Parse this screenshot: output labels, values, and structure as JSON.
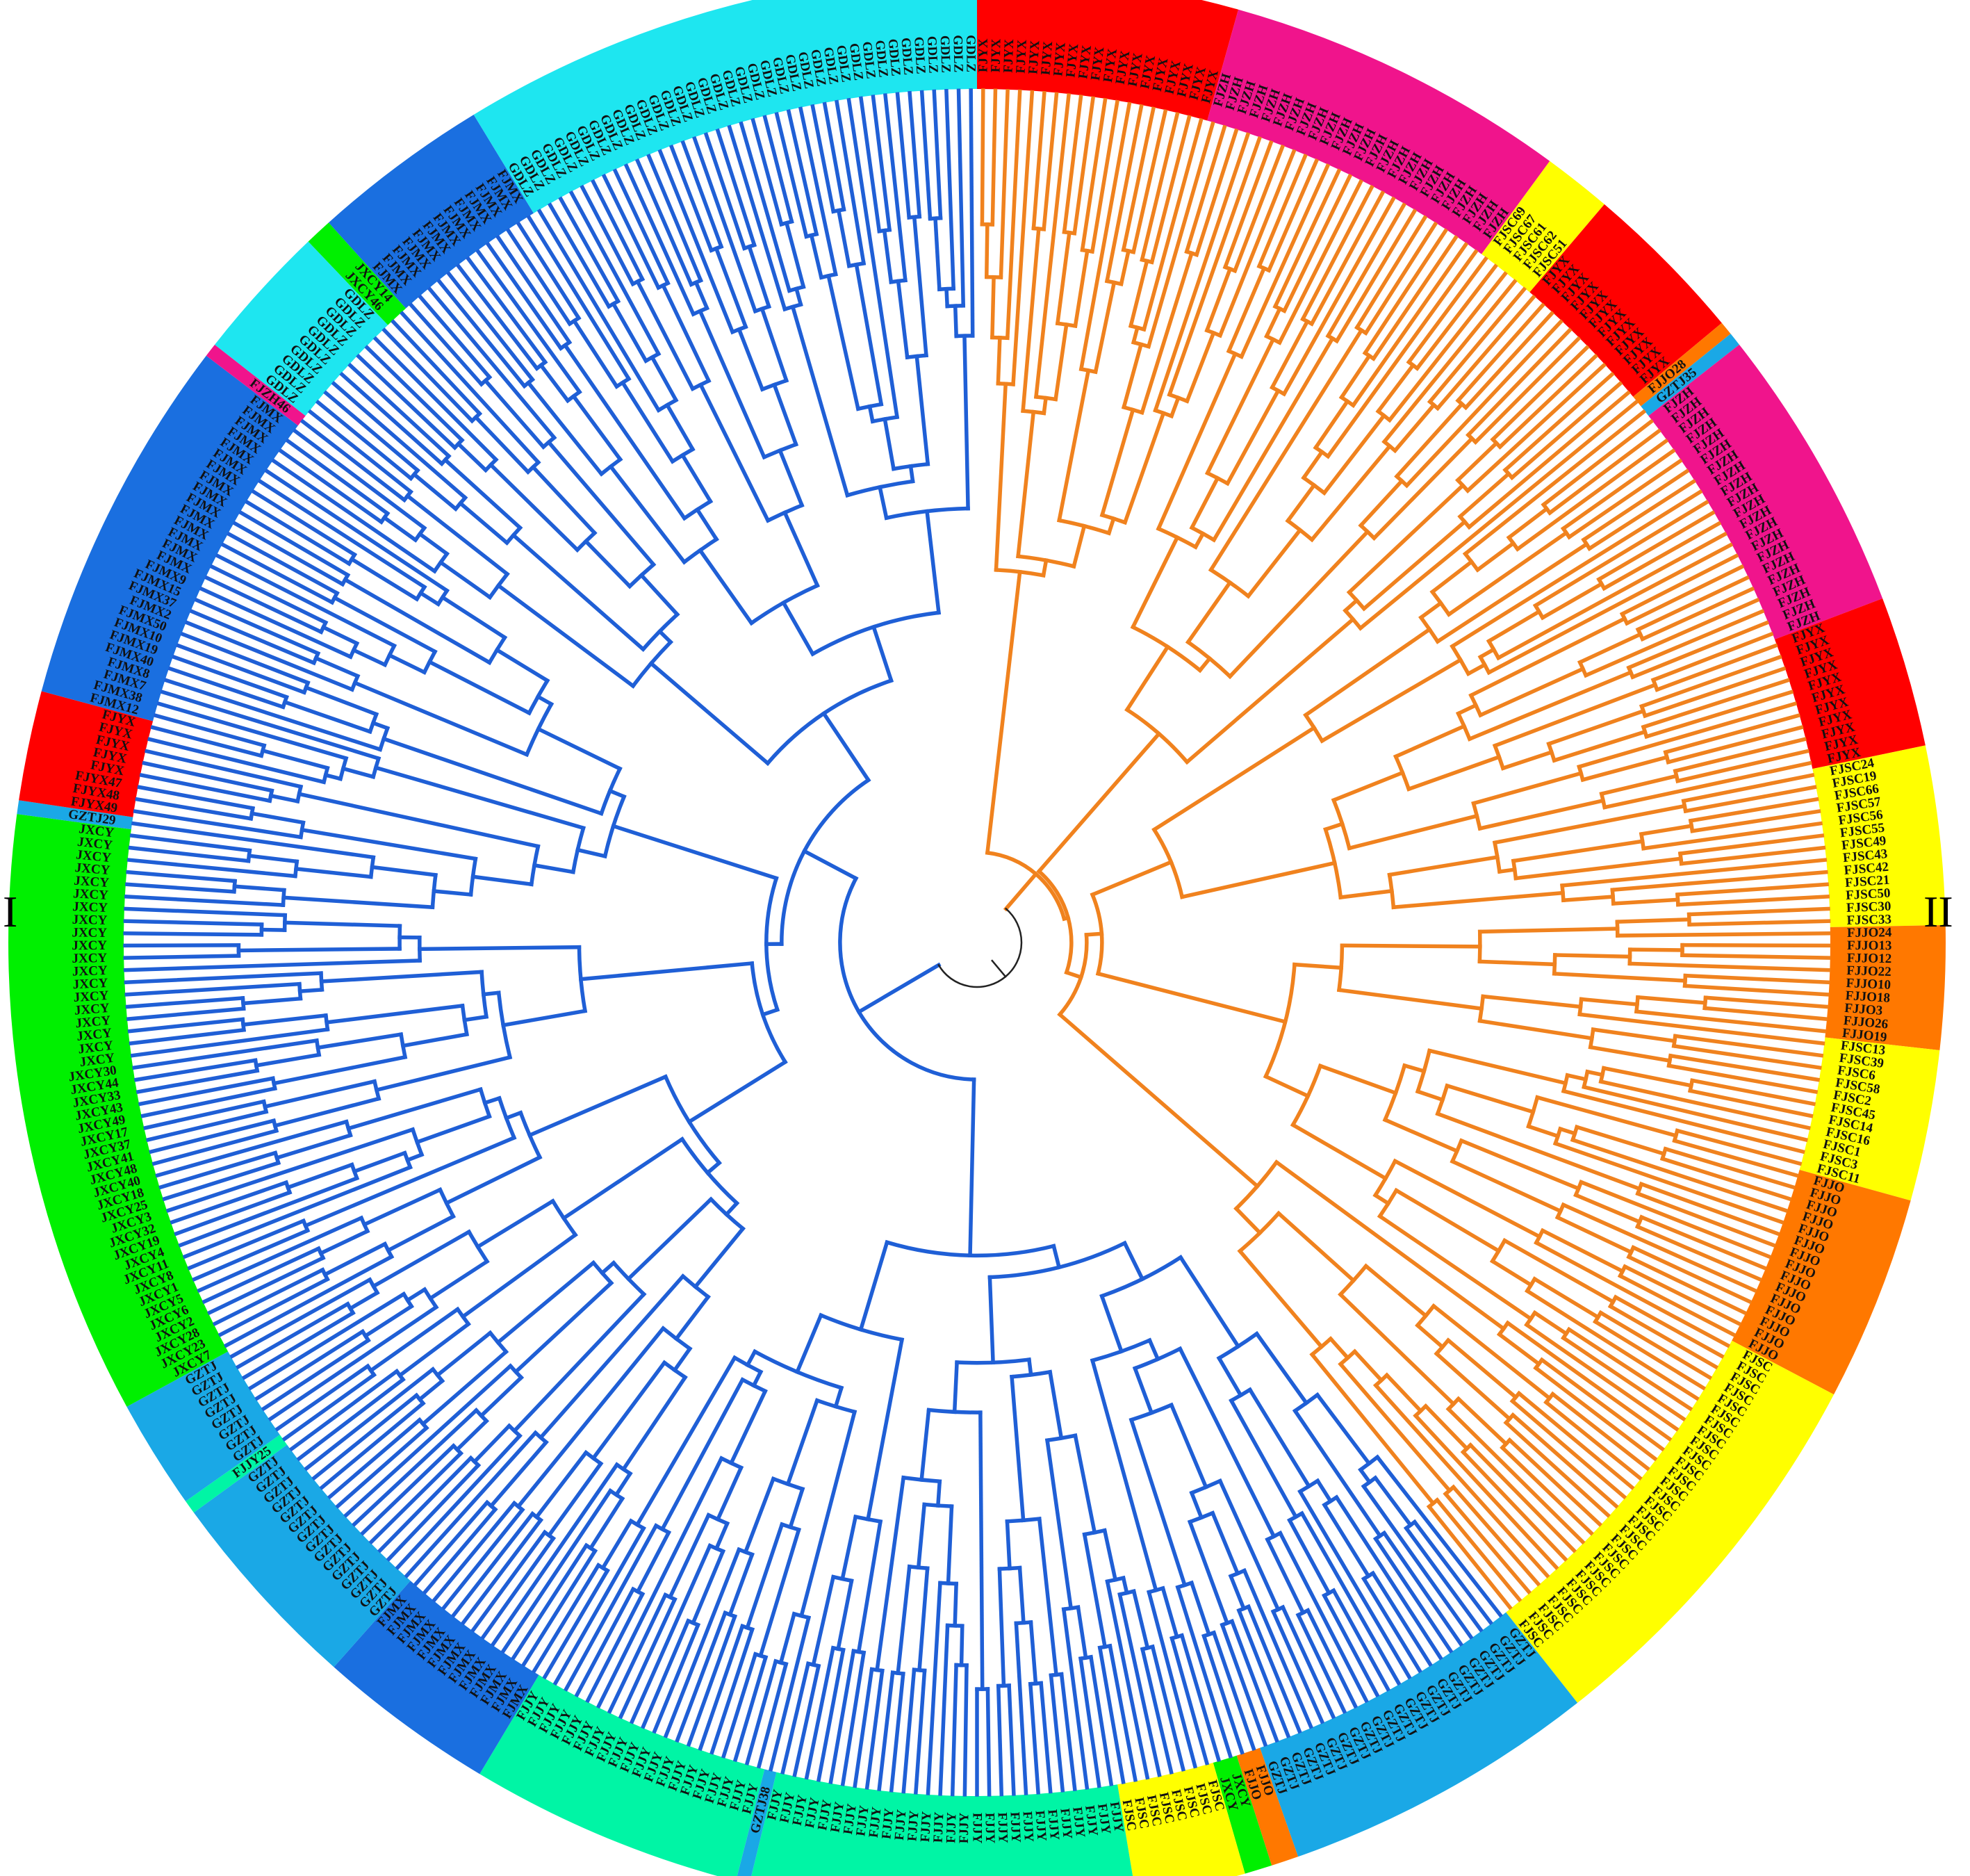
{
  "group_labels": {
    "left": "I",
    "right": "II"
  },
  "colors": {
    "clade_I": "#1f5fd6",
    "clade_II": "#f0821e",
    "root": "#222222"
  },
  "clade_II_segment_range": [
    0,
    12
  ],
  "segments": [
    {
      "prefix": "FJYX",
      "color": "#ff0000",
      "count": 19,
      "labels": []
    },
    {
      "prefix": "FJZH",
      "color": "#f0148c",
      "count": 25,
      "labels": []
    },
    {
      "prefix": "FJSC",
      "color": "#ffff00",
      "count": 5,
      "labels": [
        "FJSC69",
        "FJSC67",
        "FJSC61",
        "FJSC62",
        "FJSC51"
      ]
    },
    {
      "prefix": "FJYX",
      "color": "#ff0000",
      "count": 12,
      "labels": []
    },
    {
      "prefix": "FJJO",
      "color": "#ff7800",
      "count": 1,
      "labels": [
        "FJJO28"
      ]
    },
    {
      "prefix": "GZTJ",
      "color": "#1aa8e6",
      "count": 1,
      "labels": [
        "GZTJ35"
      ]
    },
    {
      "prefix": "FJZH",
      "color": "#f0148c",
      "count": 21,
      "labels": []
    },
    {
      "prefix": "FJYX",
      "color": "#ff0000",
      "count": 11,
      "labels": []
    },
    {
      "prefix": "FJSC",
      "color": "#ffff00",
      "count": 13,
      "labels": [
        "FJSC24",
        "FJSC19",
        "FJSC66",
        "FJSC57",
        "FJSC56",
        "FJSC55",
        "FJSC49",
        "FJSC43",
        "FJSC42",
        "FJSC21",
        "FJSC50",
        "FJSC30",
        "FJSC33"
      ]
    },
    {
      "prefix": "FJJO",
      "color": "#ff7800",
      "count": 9,
      "labels": [
        "FJJO24",
        "FJJO13",
        "FJJO12",
        "FJJO22",
        "FJJO10",
        "FJJO18",
        "FJJO3",
        "FJJO26",
        "FJJO19"
      ]
    },
    {
      "prefix": "FJSC",
      "color": "#ffff00",
      "count": 11,
      "labels": [
        "FJSC13",
        "FJSC39",
        "FJSC6",
        "FJSC58",
        "FJSC2",
        "FJSC45",
        "FJSC14",
        "FJSC16",
        "FJSC1",
        "FJSC3",
        "FJSC11"
      ]
    },
    {
      "prefix": "FJJO",
      "color": "#ff7800",
      "count": 15,
      "labels": []
    },
    {
      "prefix": "FJSC",
      "color": "#ffff00",
      "count": 29,
      "labels": []
    },
    {
      "prefix": "GZTJ",
      "color": "#1aa8e6",
      "count": 23,
      "labels": []
    },
    {
      "prefix": "FJJO",
      "color": "#ff7800",
      "count": 2,
      "labels": []
    },
    {
      "prefix": "JXCY",
      "color": "#00f000",
      "count": 2,
      "labels": []
    },
    {
      "prefix": "FJSC",
      "color": "#ffff00",
      "count": 8,
      "labels": []
    },
    {
      "prefix": "FJJY",
      "color": "#00f5a5",
      "count": 28,
      "labels": []
    },
    {
      "prefix": "GZTJ",
      "color": "#1aa8e6",
      "count": 1,
      "labels": [
        "GZTJ38"
      ]
    },
    {
      "prefix": "FJJY",
      "color": "#00f5a5",
      "count": 20,
      "labels": []
    },
    {
      "prefix": "FJMX",
      "color": "#1a6fe0",
      "count": 13,
      "labels": []
    },
    {
      "prefix": "GZTJ",
      "color": "#1aa8e6",
      "count": 15,
      "labels": []
    },
    {
      "prefix": "FJJY",
      "color": "#00f5a5",
      "count": 1,
      "labels": [
        "FJJY25"
      ]
    },
    {
      "prefix": "GZTJ",
      "color": "#1aa8e6",
      "count": 8,
      "labels": []
    },
    {
      "prefix": "JXCY",
      "color": "#00f000",
      "count": 44,
      "labels": [
        "JXCY7",
        "JXCY23",
        "JXCY28",
        "JXCY2",
        "JXCY6",
        "JXCY5",
        "JXCY1",
        "JXCY8",
        "JXCY11",
        "JXCY4",
        "JXCY19",
        "JXCY32",
        "JXCY3",
        "JXCY25",
        "JXCY18",
        "JXCY40",
        "JXCY48",
        "JXCY41",
        "JXCY37",
        "JXCY17",
        "JXCY49",
        "JXCY43",
        "JXCY33",
        "JXCY44",
        "JXCY30"
      ]
    },
    {
      "prefix": "GZTJ",
      "color": "#1aa8e6",
      "count": 1,
      "labels": [
        "GZTJ29"
      ]
    },
    {
      "prefix": "FJYX",
      "color": "#ff0000",
      "count": 8,
      "labels": [
        "FJYX49",
        "FJYX48",
        "FJYX47"
      ]
    },
    {
      "prefix": "FJMX",
      "color": "#1a6fe0",
      "count": 27,
      "labels": [
        "FJMX12",
        "FJMX38",
        "FJMX7",
        "FJMX8",
        "FJMX40",
        "FJMX19",
        "FJMX10",
        "FJMX50",
        "FJMX2",
        "FJMX37",
        "FJMX15",
        "FJMX9"
      ]
    },
    {
      "prefix": "FJZH",
      "color": "#f0148c",
      "count": 1,
      "labels": [
        "FJZH46"
      ]
    },
    {
      "prefix": "GDLZ",
      "color": "#1ee6f0",
      "count": 10,
      "labels": []
    },
    {
      "prefix": "JXCY",
      "color": "#00f000",
      "count": 2,
      "labels": [
        "JXCY46",
        "JXCY14"
      ]
    },
    {
      "prefix": "FJMX",
      "color": "#1a6fe0",
      "count": 13,
      "labels": []
    },
    {
      "prefix": "GDLZ",
      "color": "#1ee6f0",
      "count": 38,
      "labels": []
    }
  ]
}
